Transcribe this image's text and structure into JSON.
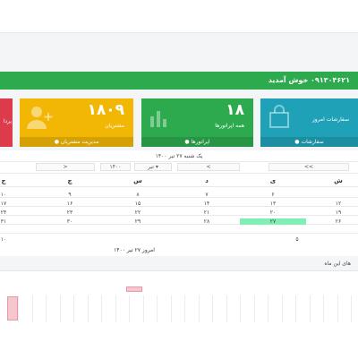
{
  "welcome": {
    "text": "۰۹۱۳۰۴۶۲۱ خوش آمدید"
  },
  "cards": {
    "orders": {
      "label": "سفارشات امروز",
      "footer": "سفارشات",
      "color": "#1fa2b8"
    },
    "operators": {
      "count": "۱۸",
      "label": "همه اپراتورها",
      "footer": "اپراتورها",
      "color": "#2eaa4e"
    },
    "customers": {
      "count": "۱۸۰۹",
      "label": "مشتریان",
      "footer": "مدیریت مشتریان",
      "color": "#f2b705"
    },
    "payments": {
      "label": "پردا",
      "color": "#dd3b4c"
    }
  },
  "calendar": {
    "title": "یک شنبه ۲۷ تیر ۱۴۰۰",
    "nav": {
      "prev_year": "<<",
      "prev_month": "<",
      "month": "تیر",
      "year": "۱۴۰۰",
      "next_month": ">"
    },
    "weekdays": [
      "ش",
      "ی",
      "د",
      "س",
      "چ",
      "پ"
    ],
    "weekday_last_partial": "ج",
    "rows": [
      [
        "",
        "",
        "",
        "",
        "",
        ""
      ],
      [
        "۱۲",
        "۱۳",
        "۱۴",
        "۱۵",
        "۱۶",
        "۱۷"
      ],
      [
        "۱۹",
        "۲۰",
        "۲۱",
        "۲۲",
        "۲۳",
        "۲۴"
      ],
      [
        "۲۶",
        "۲۷",
        "۲۸",
        "۲۹",
        "۳۰",
        "۳۱"
      ]
    ],
    "row1": [
      "",
      "۶",
      "۷",
      "۸",
      "۹",
      "۱۰"
    ],
    "extras": [
      "۵",
      "۱۰"
    ],
    "today_label": "امروز ۲۷ تیر ۱۴۰۰"
  },
  "month_section": {
    "label": "های این ماه"
  },
  "chart_data": {
    "type": "bar",
    "title": "",
    "categories": [],
    "values": []
  }
}
